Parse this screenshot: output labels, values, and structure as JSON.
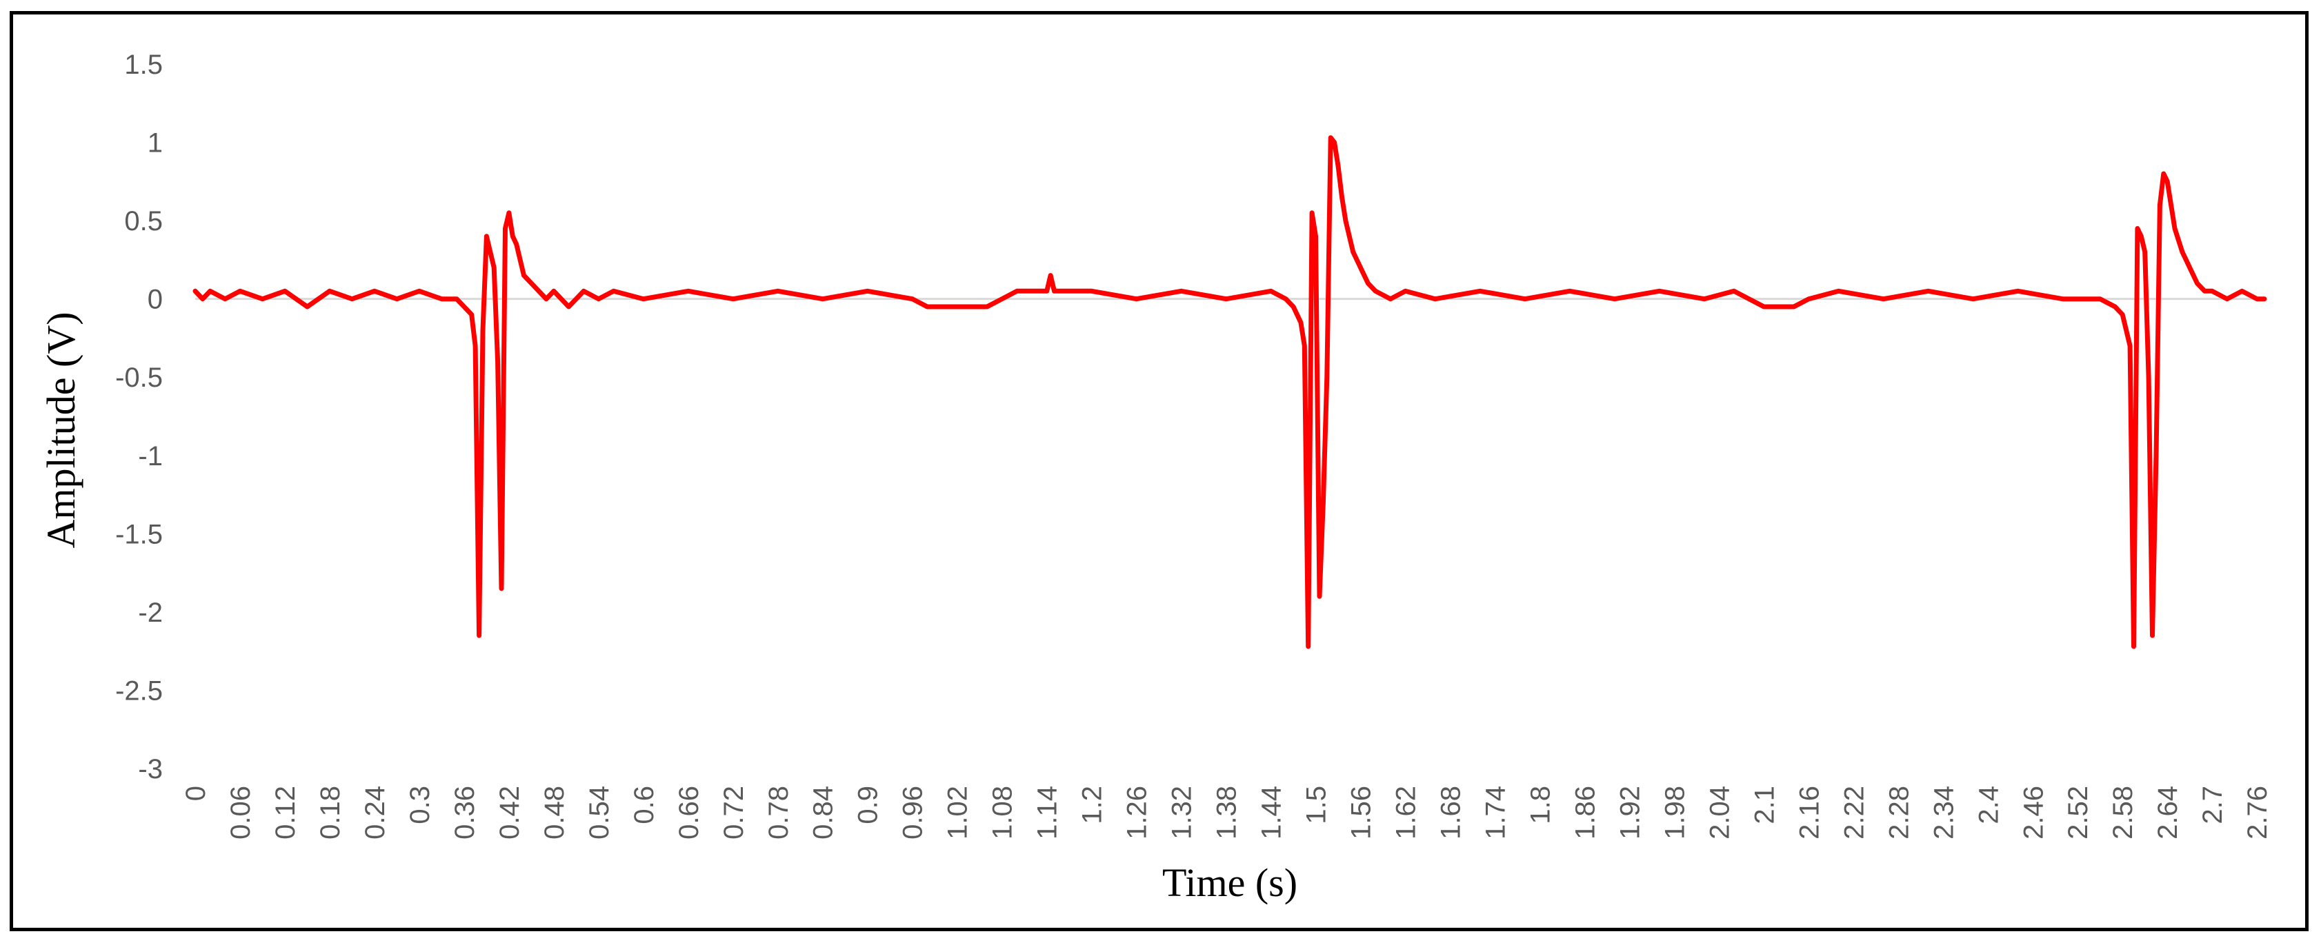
{
  "chart_data": {
    "type": "line",
    "title": "",
    "xlabel": "Time (s)",
    "ylabel": "Amplitude  (V)",
    "xlim": [
      0,
      2.77
    ],
    "ylim": [
      -3,
      1.5
    ],
    "yticks": [
      1.5,
      1,
      0.5,
      0,
      -0.5,
      -1,
      -1.5,
      -2,
      -2.5,
      -3
    ],
    "xticks": [
      "0",
      "0.06",
      "0.12",
      "0.18",
      "0.24",
      "0.3",
      "0.36",
      "0.42",
      "0.48",
      "0.54",
      "0.6",
      "0.66",
      "0.72",
      "0.78",
      "0.84",
      "0.9",
      "0.96",
      "1.02",
      "1.08",
      "1.14",
      "1.2",
      "1.26",
      "1.32",
      "1.38",
      "1.44",
      "1.5",
      "1.56",
      "1.62",
      "1.68",
      "1.74",
      "1.8",
      "1.86",
      "1.92",
      "1.98",
      "2.04",
      "2.1",
      "2.16",
      "2.22",
      "2.28",
      "2.34",
      "2.4",
      "2.46",
      "2.52",
      "2.58",
      "2.64",
      "2.7",
      "2.76"
    ],
    "grid": false,
    "legend": "none",
    "colors": {
      "series": "#ff0000",
      "zero_line": "#d9d9d9"
    },
    "series": [
      {
        "values_x": [
          0,
          0.01,
          0.02,
          0.04,
          0.06,
          0.09,
          0.12,
          0.15,
          0.18,
          0.21,
          0.24,
          0.27,
          0.3,
          0.33,
          0.35,
          0.36,
          0.37,
          0.375,
          0.38,
          0.385,
          0.39,
          0.395,
          0.4,
          0.405,
          0.41,
          0.415,
          0.42,
          0.425,
          0.43,
          0.435,
          0.44,
          0.45,
          0.46,
          0.47,
          0.48,
          0.5,
          0.52,
          0.54,
          0.56,
          0.6,
          0.66,
          0.72,
          0.78,
          0.84,
          0.9,
          0.96,
          0.98,
          1.0,
          1.02,
          1.04,
          1.06,
          1.08,
          1.1,
          1.12,
          1.14,
          1.145,
          1.15,
          1.2,
          1.26,
          1.32,
          1.38,
          1.44,
          1.46,
          1.47,
          1.48,
          1.485,
          1.49,
          1.495,
          1.5,
          1.505,
          1.51,
          1.515,
          1.52,
          1.525,
          1.53,
          1.535,
          1.54,
          1.545,
          1.55,
          1.56,
          1.57,
          1.58,
          1.6,
          1.62,
          1.66,
          1.72,
          1.78,
          1.84,
          1.9,
          1.96,
          2.02,
          2.06,
          2.08,
          2.1,
          2.12,
          2.14,
          2.16,
          2.2,
          2.26,
          2.32,
          2.38,
          2.44,
          2.5,
          2.55,
          2.57,
          2.58,
          2.59,
          2.595,
          2.6,
          2.605,
          2.61,
          2.615,
          2.62,
          2.625,
          2.63,
          2.635,
          2.64,
          2.645,
          2.65,
          2.66,
          2.67,
          2.68,
          2.69,
          2.7,
          2.72,
          2.74,
          2.76,
          2.77
        ],
        "values_y": [
          0.05,
          0.0,
          0.05,
          0.0,
          0.05,
          0.0,
          0.05,
          -0.05,
          0.05,
          0.0,
          0.05,
          0.0,
          0.05,
          0.0,
          0.0,
          -0.05,
          -0.1,
          -0.3,
          -2.15,
          -0.2,
          0.4,
          0.3,
          0.2,
          -0.4,
          -1.85,
          0.45,
          0.55,
          0.4,
          0.35,
          0.25,
          0.15,
          0.1,
          0.05,
          0.0,
          0.05,
          -0.05,
          0.05,
          0.0,
          0.05,
          0.0,
          0.05,
          0.0,
          0.05,
          0.0,
          0.05,
          0.0,
          -0.05,
          -0.05,
          -0.05,
          -0.05,
          -0.05,
          0.0,
          0.05,
          0.05,
          0.05,
          0.15,
          0.05,
          0.05,
          0.0,
          0.05,
          0.0,
          0.05,
          0.0,
          -0.05,
          -0.15,
          -0.3,
          -2.22,
          0.55,
          0.4,
          -1.9,
          -1.3,
          -0.5,
          1.03,
          1.0,
          0.85,
          0.65,
          0.5,
          0.4,
          0.3,
          0.2,
          0.1,
          0.05,
          0.0,
          0.05,
          0.0,
          0.05,
          0.0,
          0.05,
          0.0,
          0.05,
          0.0,
          0.05,
          0.0,
          -0.05,
          -0.05,
          -0.05,
          0.0,
          0.05,
          0.0,
          0.05,
          0.0,
          0.05,
          0.0,
          0.0,
          -0.05,
          -0.1,
          -0.3,
          -2.22,
          0.45,
          0.4,
          0.3,
          -0.5,
          -2.15,
          -1.0,
          0.6,
          0.8,
          0.75,
          0.6,
          0.45,
          0.3,
          0.2,
          0.1,
          0.05,
          0.05,
          0.0,
          0.05,
          0.0,
          0.0
        ]
      }
    ]
  }
}
